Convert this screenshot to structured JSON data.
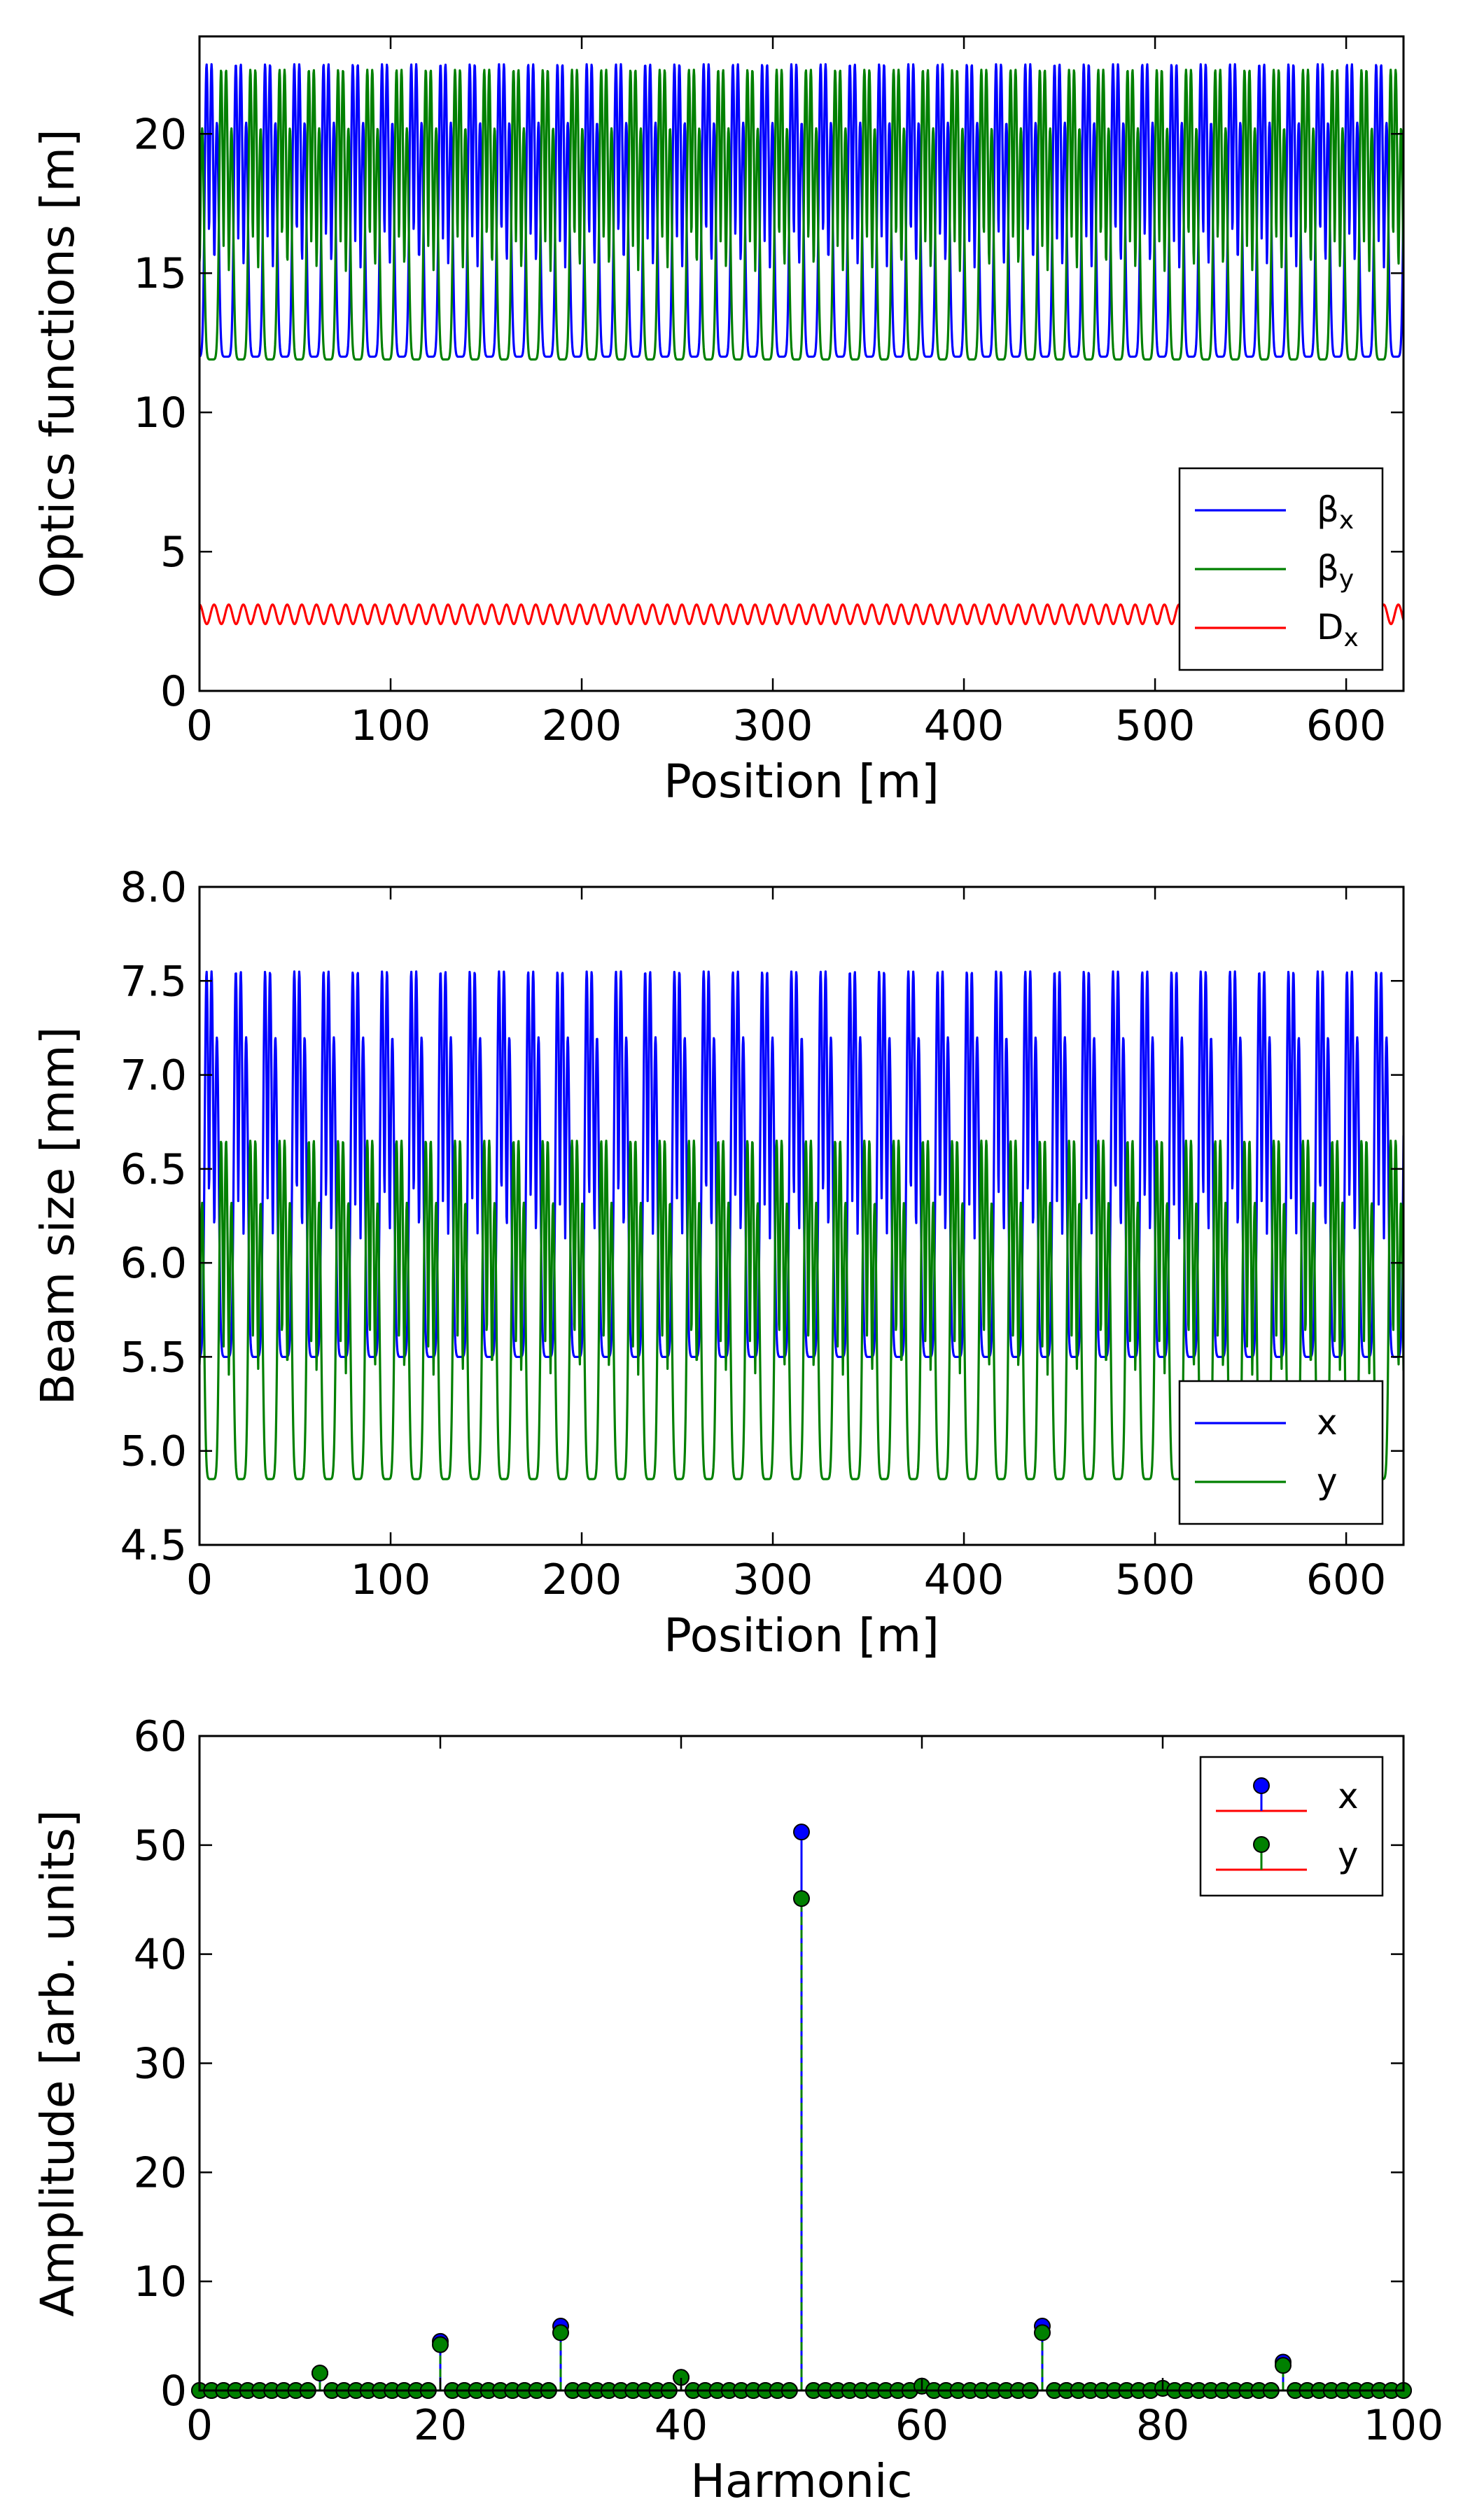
{
  "chart_data": [
    {
      "type": "line",
      "xlabel": "Position [m]",
      "ylabel": "Optics functions [m]",
      "xlim": [
        0,
        630
      ],
      "ylim": [
        0,
        23.5
      ],
      "xticks": [
        0,
        100,
        200,
        300,
        400,
        500,
        600
      ],
      "yticks": [
        0,
        5,
        10,
        15,
        20
      ],
      "legend_position": "lower-right",
      "series": [
        {
          "name": "βx",
          "label_base": "β",
          "label_sub": "x",
          "color": "#0000ff",
          "period": 15.3,
          "phase": 5.0,
          "base": 12.0,
          "peak_values": [
            22.5,
            22.5,
            20.4
          ],
          "peak_offsets": [
            -1.3,
            1.3,
            4.1
          ],
          "peak_width": 0.95
        },
        {
          "name": "βy",
          "label_base": "β",
          "label_sub": "y",
          "color": "#008000",
          "period": 15.3,
          "phase": 12.6,
          "base": 11.9,
          "peak_values": [
            22.3,
            22.3,
            20.2
          ],
          "peak_offsets": [
            -1.3,
            1.3,
            4.1
          ],
          "peak_width": 0.95
        },
        {
          "name": "Dx",
          "label_base": "D",
          "label_sub": "x",
          "color": "#ff0000",
          "period": 7.65,
          "phase": 0.0,
          "mean": 2.75,
          "amplitude": 0.35
        }
      ]
    },
    {
      "type": "line",
      "xlabel": "Position [m]",
      "ylabel": "Beam size [mm]",
      "xlim": [
        0,
        630
      ],
      "ylim": [
        4.5,
        8.0
      ],
      "xticks": [
        0,
        100,
        200,
        300,
        400,
        500,
        600
      ],
      "yticks": [
        4.5,
        5.0,
        5.5,
        6.0,
        6.5,
        7.0,
        7.5,
        8.0
      ],
      "tick_labels_y": [
        "4.5",
        "5.0",
        "5.5",
        "6.0",
        "6.5",
        "7.0",
        "7.5",
        "8.0"
      ],
      "legend_position": "lower-right",
      "series": [
        {
          "name": "x",
          "color": "#0000ff",
          "period": 15.3,
          "phase": 5.0,
          "base": 5.5,
          "peak_values": [
            7.55,
            7.55,
            7.2
          ],
          "peak_offsets": [
            -1.3,
            1.3,
            4.1
          ],
          "peak_width": 0.95
        },
        {
          "name": "y",
          "color": "#008000",
          "period": 15.3,
          "phase": 12.6,
          "base": 4.85,
          "peak_values": [
            6.65,
            6.65,
            6.32
          ],
          "peak_offsets": [
            -1.3,
            1.3,
            4.1
          ],
          "peak_width": 0.95
        }
      ]
    },
    {
      "type": "stem",
      "xlabel": "Harmonic",
      "ylabel": "Amplitude [arb. units]",
      "xlim": [
        0,
        100
      ],
      "ylim": [
        0,
        60
      ],
      "xticks": [
        0,
        20,
        40,
        60,
        80,
        100
      ],
      "yticks": [
        0,
        10,
        20,
        30,
        40,
        50,
        60
      ],
      "legend_position": "top-right",
      "baseline_color": "#ff0000",
      "harmonics_range": [
        0,
        100
      ],
      "series": [
        {
          "name": "x",
          "color": "#0000ff",
          "points": [
            [
              10,
              1.6
            ],
            [
              20,
              4.5
            ],
            [
              30,
              5.9
            ],
            [
              40,
              1.2
            ],
            [
              50,
              51.2
            ],
            [
              60,
              0.4
            ],
            [
              70,
              5.9
            ],
            [
              80,
              0.2
            ],
            [
              90,
              2.6
            ]
          ]
        },
        {
          "name": "y",
          "color": "#008000",
          "points": [
            [
              10,
              1.6
            ],
            [
              20,
              4.2
            ],
            [
              30,
              5.3
            ],
            [
              40,
              1.2
            ],
            [
              50,
              45.1
            ],
            [
              60,
              0.4
            ],
            [
              70,
              5.3
            ],
            [
              80,
              0.2
            ],
            [
              90,
              2.3
            ]
          ]
        }
      ]
    }
  ]
}
